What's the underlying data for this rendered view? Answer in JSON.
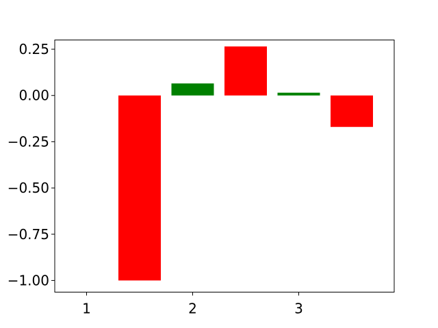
{
  "chart_data": {
    "type": "bar",
    "title": "",
    "xlabel": "",
    "ylabel": "",
    "xlim": [
      0.7,
      3.9
    ],
    "ylim": [
      -1.063,
      0.3
    ],
    "xticks": [
      1,
      2,
      3
    ],
    "xtick_labels": [
      "1",
      "2",
      "3"
    ],
    "yticks": [
      0.25,
      0.0,
      -0.25,
      -0.5,
      -0.75,
      -1.0
    ],
    "ytick_labels": [
      "0.25",
      "0.00",
      "−0.25",
      "−0.50",
      "−0.75",
      "−1.00"
    ],
    "grid": false,
    "legend": "none",
    "bars": [
      {
        "x": 1.5,
        "y0": 0.0,
        "y1": -1.0,
        "color": "#ff0000"
      },
      {
        "x": 2.0,
        "y0": 0.0,
        "y1": 0.065,
        "color": "#008000"
      },
      {
        "x": 2.5,
        "y0": 0.0,
        "y1": 0.265,
        "color": "#ff0000"
      },
      {
        "x": 3.0,
        "y0": 0.0,
        "y1": 0.015,
        "color": "#008000"
      },
      {
        "x": 3.5,
        "y0": 0.0,
        "y1": -0.17,
        "color": "#ff0000"
      }
    ]
  }
}
